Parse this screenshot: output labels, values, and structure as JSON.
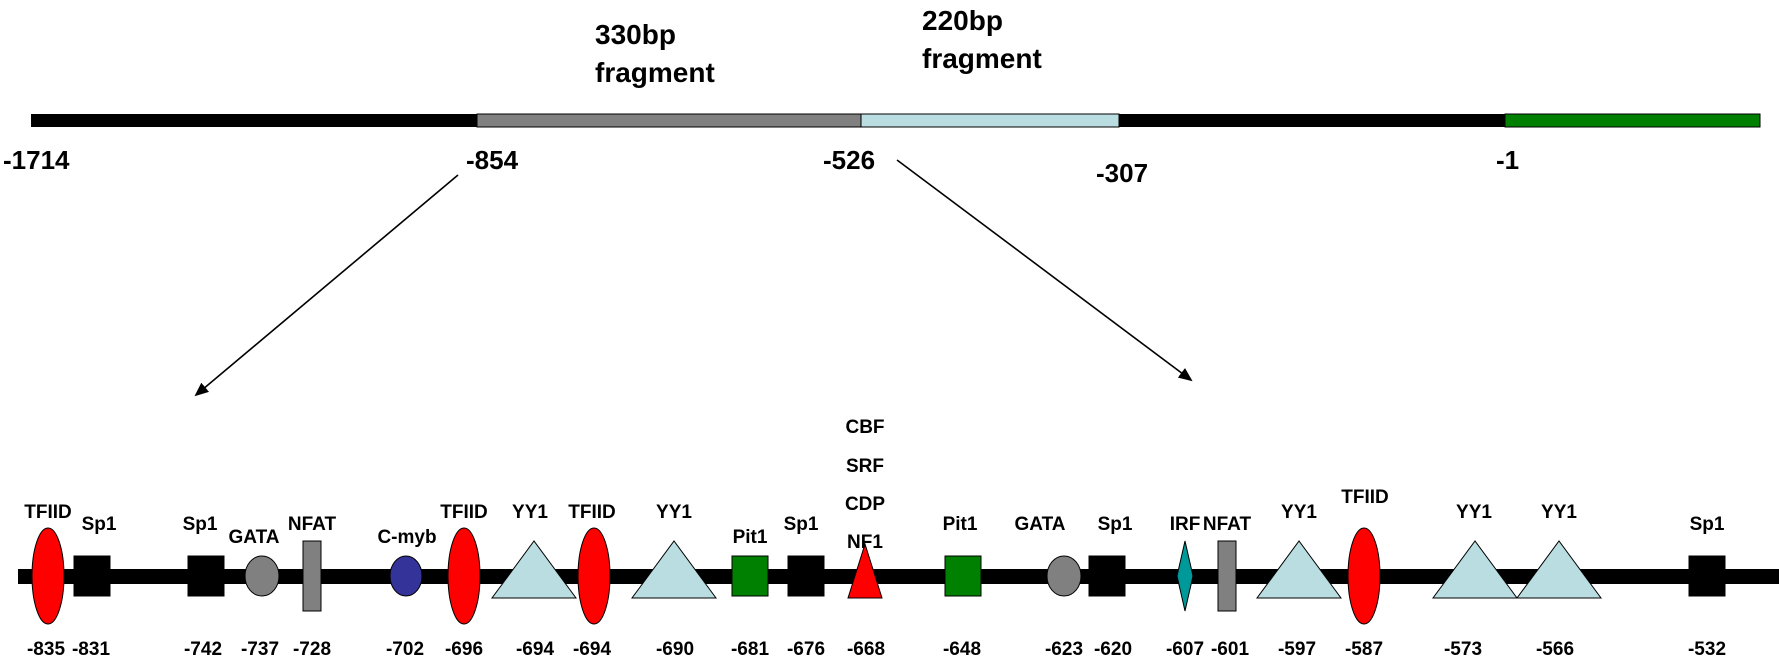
{
  "colors": {
    "black": "#000000",
    "gray": "#808080",
    "light_blue": "#b9dde0",
    "green": "#008000",
    "red": "#ff0000",
    "navy": "#333399",
    "teal": "#009999"
  },
  "promoter": {
    "positions": [
      "-1714",
      "-854",
      "-526",
      "-307",
      "-1"
    ],
    "fragments": [
      {
        "line1": "330bp",
        "line2": "fragment"
      },
      {
        "line1": "220bp",
        "line2": "fragment"
      }
    ]
  },
  "sites": [
    {
      "label": "TFIID",
      "pos": "-835",
      "shape": "ellipse",
      "color": "red"
    },
    {
      "label": "Sp1",
      "pos": "-831",
      "shape": "square",
      "color": "black"
    },
    {
      "label": "Sp1",
      "pos": "-742",
      "shape": "square",
      "color": "black"
    },
    {
      "label": "GATA",
      "pos": "-737",
      "shape": "oval",
      "color": "gray"
    },
    {
      "label": "NFAT",
      "pos": "-728",
      "shape": "bar",
      "color": "gray"
    },
    {
      "label": "C-myb",
      "pos": "-702",
      "shape": "circle",
      "color": "navy"
    },
    {
      "label": "TFIID",
      "pos": "-696",
      "shape": "ellipse",
      "color": "red"
    },
    {
      "label": "YY1",
      "pos": "-694",
      "shape": "triangle",
      "color": "light_blue"
    },
    {
      "label": "TFIID",
      "pos": "-694",
      "shape": "ellipse",
      "color": "red"
    },
    {
      "label": "YY1",
      "pos": "-690",
      "shape": "triangle",
      "color": "light_blue"
    },
    {
      "label": "Pit1",
      "pos": "-681",
      "shape": "square",
      "color": "green"
    },
    {
      "label": "Sp1",
      "pos": "-676",
      "shape": "square",
      "color": "black"
    },
    {
      "label": "CBF\nSRF\nCDP\nNF1",
      "pos": "-668",
      "shape": "small-triangle",
      "color": "red"
    },
    {
      "label": "Pit1",
      "pos": "-648",
      "shape": "square",
      "color": "green"
    },
    {
      "label": "GATA",
      "pos": "-623",
      "shape": "oval",
      "color": "gray"
    },
    {
      "label": "Sp1",
      "pos": "-620",
      "shape": "square",
      "color": "black"
    },
    {
      "label": "IRF",
      "pos": "-607",
      "shape": "diamond",
      "color": "teal"
    },
    {
      "label": "NFAT",
      "pos": "-601",
      "shape": "bar",
      "color": "gray"
    },
    {
      "label": "YY1",
      "pos": "-597",
      "shape": "triangle",
      "color": "light_blue"
    },
    {
      "label": "TFIID",
      "pos": "-587",
      "shape": "ellipse",
      "color": "red"
    },
    {
      "label": "YY1",
      "pos": "-573",
      "shape": "triangle",
      "color": "light_blue"
    },
    {
      "label": "YY1",
      "pos": "-566",
      "shape": "triangle",
      "color": "light_blue"
    },
    {
      "label": "Sp1",
      "pos": "-532",
      "shape": "square",
      "color": "black"
    }
  ]
}
